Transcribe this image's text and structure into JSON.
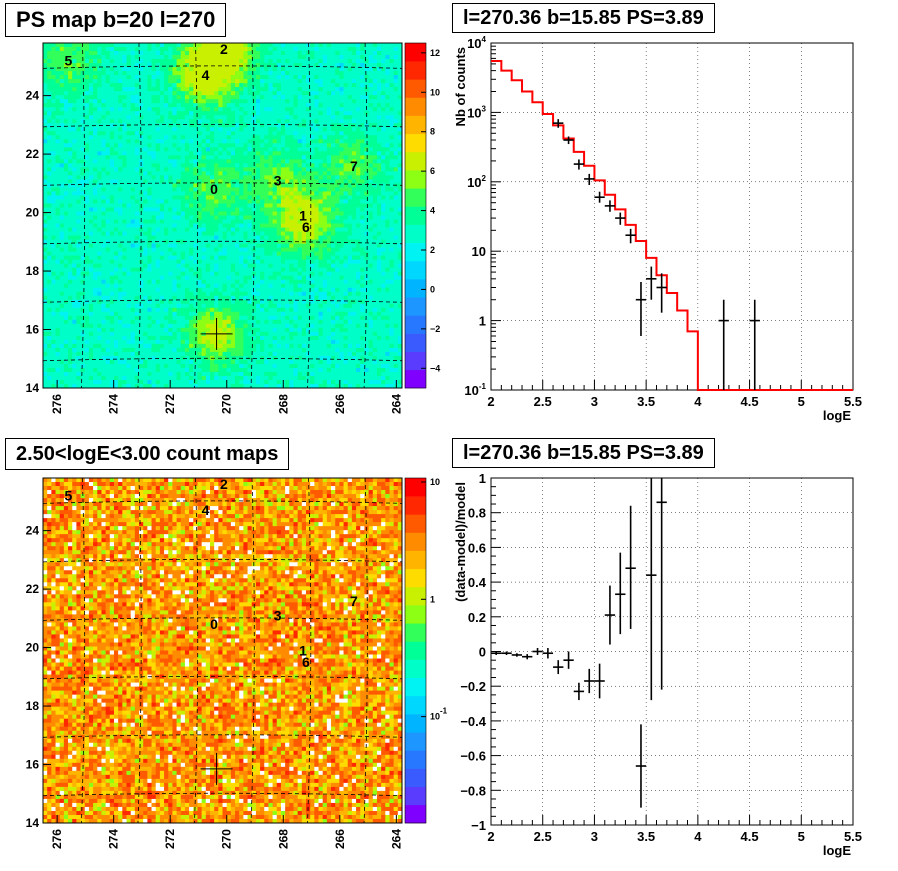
{
  "panels": {
    "tl": {
      "title": "PS map b=20 l=270"
    },
    "tr": {
      "title": "l=270.36 b=15.85 PS=3.89"
    },
    "bl": {
      "title": "2.50<logE<3.00 count maps"
    },
    "br": {
      "title": "l=270.36 b=15.85 PS=3.89"
    }
  },
  "chart_data": [
    {
      "id": "ps-map",
      "type": "heatmap",
      "title": "PS map b=20 l=270",
      "x_ticks": [
        "276",
        "274",
        "272",
        "270",
        "268",
        "266",
        "264"
      ],
      "y_ticks": [
        "14",
        "16",
        "18",
        "20",
        "22",
        "24"
      ],
      "colorbar_ticks": [
        "−4",
        "−2",
        "0",
        "2",
        "4",
        "6",
        "8",
        "10",
        "12"
      ],
      "colorbar_colors": [
        "#7f00ff",
        "#5a3cff",
        "#3a5cff",
        "#2878ff",
        "#1e96ff",
        "#00b4ff",
        "#00d7ff",
        "#00f3f3",
        "#00ffc8",
        "#00ff96",
        "#32ff5a",
        "#8cff14",
        "#c8f000",
        "#ffdc00",
        "#ffb400",
        "#ff8c00",
        "#ff5a00",
        "#ff2800",
        "#ff0000"
      ],
      "xlim": [
        276.5,
        263.8
      ],
      "ylim": [
        14,
        25.8
      ],
      "source_markers": [
        {
          "label": "0",
          "l": 270.45,
          "b": 20.8
        },
        {
          "label": "1",
          "l": 267.3,
          "b": 19.9
        },
        {
          "label": "2",
          "l": 270.1,
          "b": 25.6
        },
        {
          "label": "3",
          "l": 268.2,
          "b": 21.1
        },
        {
          "label": "4",
          "l": 270.75,
          "b": 24.7
        },
        {
          "label": "5",
          "l": 275.6,
          "b": 25.2
        },
        {
          "label": "6",
          "l": 267.2,
          "b": 19.5
        },
        {
          "label": "7",
          "l": 265.5,
          "b": 21.6
        }
      ],
      "crosshair": {
        "l": 270.36,
        "b": 15.85
      }
    },
    {
      "id": "spectrum",
      "type": "line",
      "title": "l=270.36 b=15.85 PS=3.89",
      "xlabel": "logE",
      "ylabel": "Nb of counts",
      "xlim": [
        2,
        5.5
      ],
      "ylim": [
        0.1,
        10000
      ],
      "yscale": "log",
      "grid": true,
      "x_ticks": [
        "2",
        "2.5",
        "3",
        "3.5",
        "4",
        "4.5",
        "5",
        "5.5"
      ],
      "y_ticks": [
        "10^-1",
        "1",
        "10",
        "10^2",
        "10^3",
        "10^4"
      ],
      "model_color": "#ff0000",
      "model_edges": [
        2,
        2.1,
        2.2,
        2.3,
        2.4,
        2.5,
        2.6,
        2.7,
        2.8,
        2.9,
        3.0,
        3.1,
        3.2,
        3.3,
        3.4,
        3.5,
        3.6,
        3.7,
        3.8,
        3.9,
        4.0,
        5.5
      ],
      "model_values": [
        5500,
        4000,
        2900,
        2000,
        1400,
        950,
        650,
        420,
        270,
        170,
        105,
        65,
        40,
        24,
        14,
        8,
        4.5,
        2.5,
        1.4,
        0.7,
        0.1
      ],
      "points": [
        {
          "x": 2.65,
          "y": 700,
          "ylo": 600,
          "yhi": 800
        },
        {
          "x": 2.75,
          "y": 400,
          "ylo": 350,
          "yhi": 450
        },
        {
          "x": 2.85,
          "y": 180,
          "ylo": 150,
          "yhi": 210
        },
        {
          "x": 2.95,
          "y": 110,
          "ylo": 90,
          "yhi": 130
        },
        {
          "x": 3.05,
          "y": 60,
          "ylo": 50,
          "yhi": 72
        },
        {
          "x": 3.15,
          "y": 45,
          "ylo": 37,
          "yhi": 54
        },
        {
          "x": 3.25,
          "y": 30,
          "ylo": 24,
          "yhi": 36
        },
        {
          "x": 3.35,
          "y": 17,
          "ylo": 13,
          "yhi": 21
        },
        {
          "x": 3.45,
          "y": 2,
          "ylo": 0.6,
          "yhi": 3.6
        },
        {
          "x": 3.55,
          "y": 4,
          "ylo": 2,
          "yhi": 6
        },
        {
          "x": 3.65,
          "y": 3,
          "ylo": 1.3,
          "yhi": 4.8
        },
        {
          "x": 4.25,
          "y": 1,
          "ylo": 0.1,
          "yhi": 2
        },
        {
          "x": 4.55,
          "y": 1,
          "ylo": 0.1,
          "yhi": 2
        }
      ]
    },
    {
      "id": "count-map",
      "type": "heatmap",
      "title": "2.50<logE<3.00 count maps",
      "x_ticks": [
        "276",
        "274",
        "272",
        "270",
        "268",
        "266",
        "264"
      ],
      "y_ticks": [
        "14",
        "16",
        "18",
        "20",
        "22",
        "24"
      ],
      "colorbar_ticks": [
        "10",
        "1",
        "10^-1"
      ],
      "colorbar_colors": [
        "#7f00ff",
        "#5a3cff",
        "#3a5cff",
        "#2878ff",
        "#1e96ff",
        "#00b4ff",
        "#00d7ff",
        "#00f3f3",
        "#00ffc8",
        "#00ff96",
        "#32ff5a",
        "#8cff14",
        "#c8f000",
        "#ffdc00",
        "#ffb400",
        "#ff8c00",
        "#ff5a00",
        "#ff2800",
        "#ff0000"
      ],
      "xlim": [
        276.5,
        263.8
      ],
      "ylim": [
        14,
        25.8
      ],
      "source_markers": [
        {
          "label": "0",
          "l": 270.45,
          "b": 20.8
        },
        {
          "label": "1",
          "l": 267.3,
          "b": 19.9
        },
        {
          "label": "2",
          "l": 270.1,
          "b": 25.6
        },
        {
          "label": "3",
          "l": 268.2,
          "b": 21.1
        },
        {
          "label": "4",
          "l": 270.75,
          "b": 24.7
        },
        {
          "label": "5",
          "l": 275.6,
          "b": 25.2
        },
        {
          "label": "6",
          "l": 267.2,
          "b": 19.5
        },
        {
          "label": "7",
          "l": 265.5,
          "b": 21.6
        }
      ],
      "crosshair": {
        "l": 270.36,
        "b": 15.85
      }
    },
    {
      "id": "residuals",
      "type": "scatter",
      "title": "l=270.36 b=15.85 PS=3.89",
      "xlabel": "logE",
      "ylabel": "(data-model)/model",
      "xlim": [
        2,
        5.5
      ],
      "ylim": [
        -1,
        1
      ],
      "grid": true,
      "x_ticks": [
        "2",
        "2.5",
        "3",
        "3.5",
        "4",
        "4.5",
        "5",
        "5.5"
      ],
      "y_ticks": [
        "−1",
        "−0.8",
        "−0.6",
        "−0.4",
        "−0.2",
        "0",
        "0.2",
        "0.4",
        "0.6",
        "0.8",
        "1"
      ],
      "points": [
        {
          "x": 2.05,
          "y": -0.01,
          "ylo": -0.02,
          "yhi": 0.0
        },
        {
          "x": 2.15,
          "y": -0.01,
          "ylo": -0.02,
          "yhi": 0.0
        },
        {
          "x": 2.25,
          "y": -0.02,
          "ylo": -0.03,
          "yhi": -0.01
        },
        {
          "x": 2.35,
          "y": -0.03,
          "ylo": -0.045,
          "yhi": -0.015
        },
        {
          "x": 2.45,
          "y": 0.0,
          "ylo": -0.02,
          "yhi": 0.02
        },
        {
          "x": 2.55,
          "y": -0.01,
          "ylo": -0.04,
          "yhi": 0.02
        },
        {
          "x": 2.65,
          "y": -0.09,
          "ylo": -0.13,
          "yhi": -0.05
        },
        {
          "x": 2.75,
          "y": -0.05,
          "ylo": -0.1,
          "yhi": 0.0
        },
        {
          "x": 2.85,
          "y": -0.23,
          "ylo": -0.28,
          "yhi": -0.18
        },
        {
          "x": 2.95,
          "y": -0.17,
          "ylo": -0.24,
          "yhi": -0.1
        },
        {
          "x": 3.05,
          "y": -0.17,
          "ylo": -0.27,
          "yhi": -0.07
        },
        {
          "x": 3.15,
          "y": 0.21,
          "ylo": 0.04,
          "yhi": 0.38
        },
        {
          "x": 3.25,
          "y": 0.33,
          "ylo": 0.1,
          "yhi": 0.57
        },
        {
          "x": 3.35,
          "y": 0.48,
          "ylo": 0.13,
          "yhi": 0.84
        },
        {
          "x": 3.45,
          "y": -0.66,
          "ylo": -0.9,
          "yhi": -0.42
        },
        {
          "x": 3.55,
          "y": 0.44,
          "ylo": -0.28,
          "yhi": 1.0
        },
        {
          "x": 3.65,
          "y": 0.86,
          "ylo": -0.22,
          "yhi": 1.0
        }
      ]
    }
  ]
}
